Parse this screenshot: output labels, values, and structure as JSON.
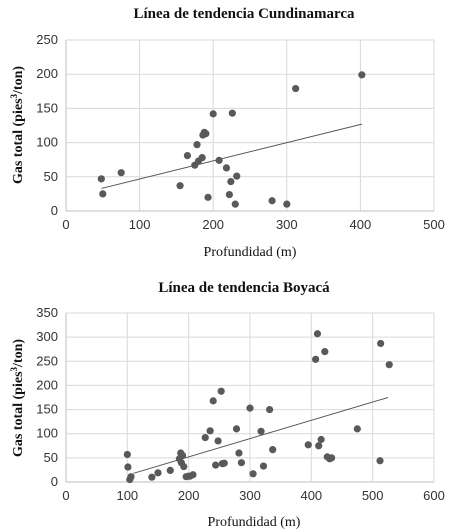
{
  "chart_data": [
    {
      "type": "scatter",
      "title": "Línea de tendencia Cundinamarca",
      "xlabel": "Profundidad (m)",
      "ylabel_main": "Gas total (pies",
      "ylabel_sup": "3",
      "ylabel_end": "/ton)",
      "xlim": [
        0,
        500
      ],
      "ylim": [
        0,
        250
      ],
      "xticks": [
        0,
        100,
        200,
        300,
        400,
        500
      ],
      "yticks": [
        0,
        50,
        100,
        150,
        200,
        250
      ],
      "grid": true,
      "points": [
        [
          48,
          47
        ],
        [
          50,
          25
        ],
        [
          75,
          56
        ],
        [
          155,
          37
        ],
        [
          165,
          81
        ],
        [
          175,
          67
        ],
        [
          178,
          97
        ],
        [
          180,
          73
        ],
        [
          185,
          78
        ],
        [
          186,
          111
        ],
        [
          188,
          115
        ],
        [
          190,
          113
        ],
        [
          193,
          20
        ],
        [
          200,
          142
        ],
        [
          208,
          74
        ],
        [
          218,
          63
        ],
        [
          222,
          24
        ],
        [
          224,
          43
        ],
        [
          226,
          143
        ],
        [
          230,
          10
        ],
        [
          232,
          51
        ],
        [
          280,
          15
        ],
        [
          300,
          10
        ],
        [
          312,
          179
        ],
        [
          402,
          199
        ]
      ],
      "trendline": [
        [
          48,
          33
        ],
        [
          402,
          127
        ]
      ]
    },
    {
      "type": "scatter",
      "title": "Línea de tendencia Boyacá",
      "xlabel": "Profundidad (m)",
      "ylabel_main": "Gas total (pies",
      "ylabel_sup": "3",
      "ylabel_end": "/ton)",
      "xlim": [
        0,
        600
      ],
      "ylim": [
        0,
        350
      ],
      "xticks": [
        0,
        100,
        200,
        300,
        400,
        500,
        600
      ],
      "yticks": [
        0,
        50,
        100,
        150,
        200,
        250,
        300,
        350
      ],
      "grid": true,
      "points": [
        [
          100,
          57
        ],
        [
          101,
          31
        ],
        [
          104,
          5
        ],
        [
          106,
          11
        ],
        [
          140,
          10
        ],
        [
          150,
          19
        ],
        [
          170,
          24
        ],
        [
          185,
          48
        ],
        [
          187,
          60
        ],
        [
          188,
          40
        ],
        [
          190,
          55
        ],
        [
          192,
          32
        ],
        [
          196,
          11
        ],
        [
          200,
          12
        ],
        [
          202,
          12
        ],
        [
          207,
          15
        ],
        [
          227,
          92
        ],
        [
          235,
          106
        ],
        [
          240,
          168
        ],
        [
          244,
          35
        ],
        [
          248,
          85
        ],
        [
          253,
          188
        ],
        [
          255,
          38
        ],
        [
          258,
          39
        ],
        [
          278,
          110
        ],
        [
          282,
          60
        ],
        [
          286,
          40
        ],
        [
          300,
          153
        ],
        [
          305,
          17
        ],
        [
          318,
          105
        ],
        [
          322,
          33
        ],
        [
          332,
          150
        ],
        [
          337,
          67
        ],
        [
          395,
          77
        ],
        [
          407,
          254
        ],
        [
          410,
          307
        ],
        [
          412,
          75
        ],
        [
          416,
          88
        ],
        [
          422,
          270
        ],
        [
          426,
          52
        ],
        [
          430,
          48
        ],
        [
          433,
          50
        ],
        [
          475,
          110
        ],
        [
          512,
          44
        ],
        [
          513,
          287
        ],
        [
          527,
          243
        ]
      ],
      "trendline": [
        [
          110,
          18
        ],
        [
          525,
          175
        ]
      ]
    }
  ]
}
